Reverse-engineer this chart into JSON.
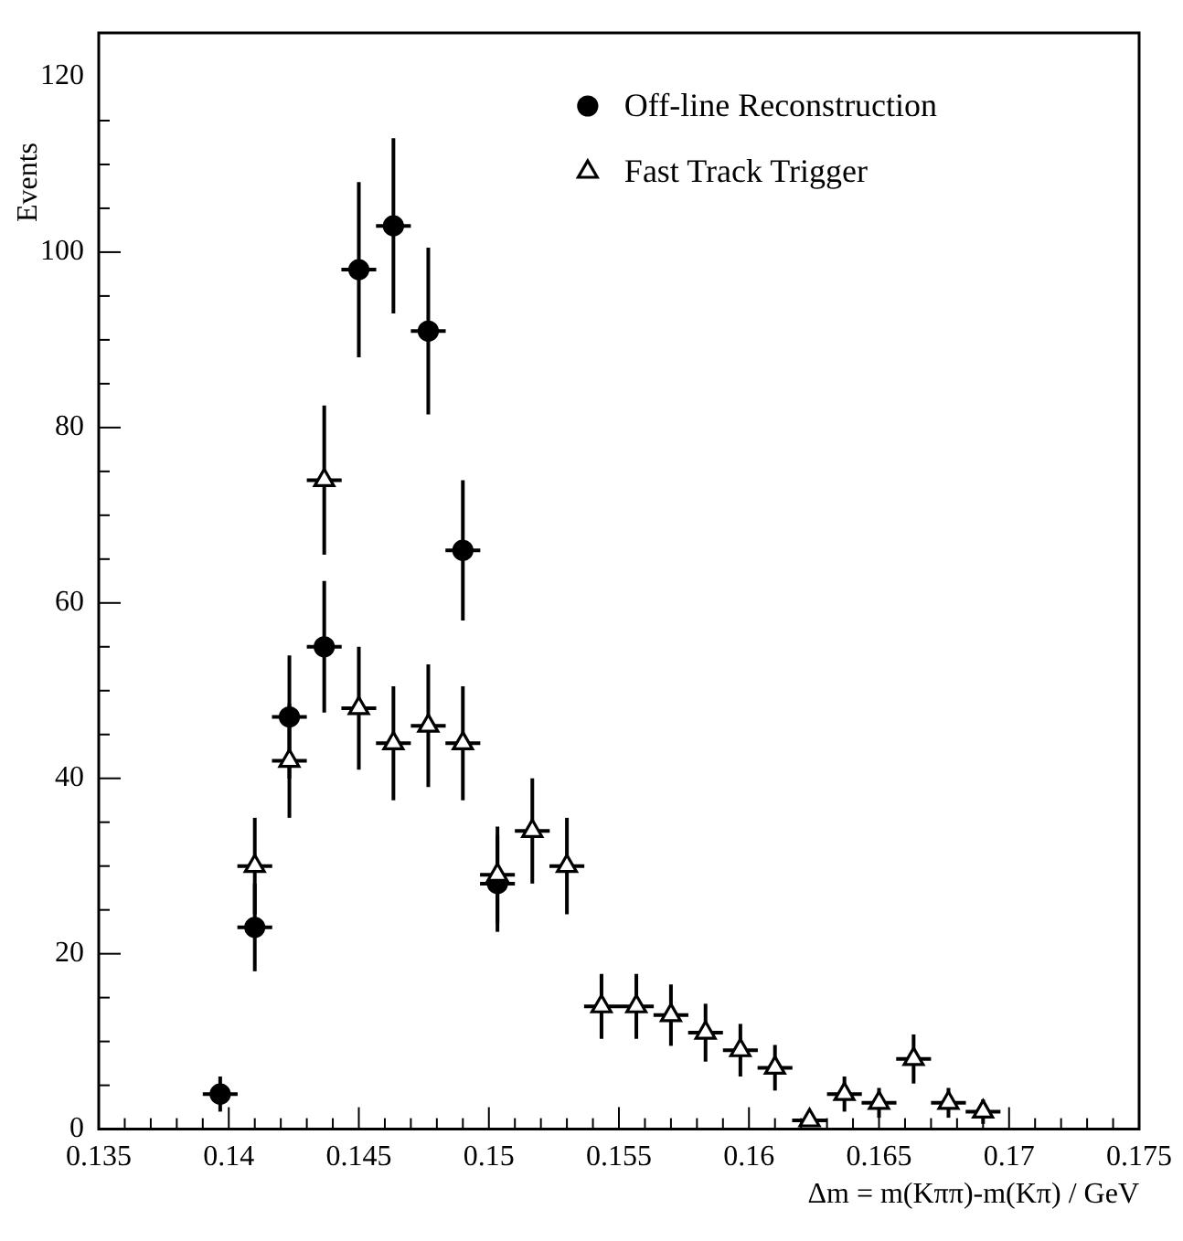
{
  "chart_data": {
    "type": "scatter",
    "xlabel": "Δm = m(Kππ)-m(Kπ) / GeV",
    "ylabel": "Events",
    "xlim": [
      0.135,
      0.175
    ],
    "ylim": [
      0,
      125
    ],
    "xticks": [
      0.135,
      0.14,
      0.145,
      0.15,
      0.155,
      0.16,
      0.165,
      0.17,
      0.175
    ],
    "yticks": [
      0,
      20,
      40,
      60,
      80,
      100,
      120
    ],
    "grid": false,
    "legend": "top right",
    "series": [
      {
        "name": "Off-line Reconstruction",
        "color": "#000000",
        "marker": "circle",
        "x": [
          0.13967,
          0.141,
          0.14233,
          0.14367,
          0.145,
          0.14633,
          0.14767,
          0.149,
          0.15033
        ],
        "values": [
          4,
          23,
          47,
          55,
          98,
          103,
          91,
          66,
          28
        ],
        "errors": [
          2,
          5,
          7,
          7.5,
          10,
          10,
          9.5,
          8,
          5.5
        ],
        "xerrors": [
          0.00067,
          0.00067,
          0.00067,
          0.00067,
          0.00067,
          0.00067,
          0.00067,
          0.00067,
          0.00067
        ]
      },
      {
        "name": "Fast Track Trigger",
        "color": "#000000",
        "marker": "triangle",
        "x": [
          0.141,
          0.14233,
          0.14367,
          0.145,
          0.14633,
          0.14767,
          0.149,
          0.15033,
          0.15167,
          0.153,
          0.15433,
          0.15567,
          0.157,
          0.15833,
          0.15967,
          0.161,
          0.16233,
          0.16367,
          0.165,
          0.16633,
          0.16767,
          0.169
        ],
        "values": [
          30,
          42,
          74,
          48,
          44,
          46,
          44,
          29,
          34,
          30,
          14,
          14,
          13,
          11,
          9,
          7,
          1,
          4,
          3,
          8,
          3,
          2
        ],
        "errors": [
          5.5,
          6.5,
          8.5,
          7,
          6.5,
          7,
          6.5,
          5.5,
          6,
          5.5,
          3.7,
          3.7,
          3.5,
          3.3,
          3,
          2.6,
          null,
          2,
          1.7,
          2.8,
          1.7,
          1.4
        ],
        "xerrors": [
          0.00067,
          0.00067,
          0.00067,
          0.00067,
          0.00067,
          0.00067,
          0.00067,
          0.00067,
          0.00067,
          0.00067,
          0.00067,
          0.00067,
          0.00067,
          0.00067,
          0.00067,
          0.00067,
          0.00067,
          0.00067,
          0.00067,
          0.00067,
          0.00067,
          0.00067
        ]
      }
    ]
  }
}
